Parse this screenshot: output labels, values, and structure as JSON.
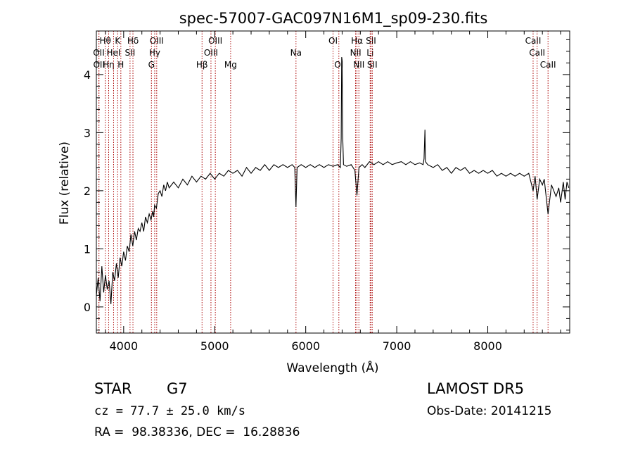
{
  "chart_data": {
    "type": "line",
    "title": "spec-57007-GAC097N16M1_sp09-230.fits",
    "xlabel": "Wavelength (Å)",
    "ylabel": "Flux (relative)",
    "xlim": [
      3700,
      8900
    ],
    "ylim": [
      -0.45,
      4.75
    ],
    "xticks": [
      4000,
      5000,
      6000,
      7000,
      8000
    ],
    "yticks": [
      0,
      1,
      2,
      3,
      4
    ],
    "grid": false,
    "series": [
      {
        "color": "#000000",
        "points": [
          [
            3700,
            0.2
          ],
          [
            3720,
            0.5
          ],
          [
            3740,
            0.1
          ],
          [
            3760,
            0.7
          ],
          [
            3780,
            0.25
          ],
          [
            3800,
            0.55
          ],
          [
            3820,
            0.3
          ],
          [
            3840,
            0.45
          ],
          [
            3860,
            0.05
          ],
          [
            3880,
            0.6
          ],
          [
            3900,
            0.45
          ],
          [
            3920,
            0.75
          ],
          [
            3940,
            0.5
          ],
          [
            3960,
            0.85
          ],
          [
            3980,
            0.7
          ],
          [
            4000,
            0.95
          ],
          [
            4020,
            0.8
          ],
          [
            4040,
            1.05
          ],
          [
            4060,
            0.95
          ],
          [
            4080,
            1.25
          ],
          [
            4100,
            1.05
          ],
          [
            4120,
            1.3
          ],
          [
            4140,
            1.15
          ],
          [
            4160,
            1.35
          ],
          [
            4180,
            1.3
          ],
          [
            4200,
            1.45
          ],
          [
            4220,
            1.3
          ],
          [
            4240,
            1.55
          ],
          [
            4260,
            1.45
          ],
          [
            4280,
            1.6
          ],
          [
            4300,
            1.5
          ],
          [
            4320,
            1.65
          ],
          [
            4330,
            1.55
          ],
          [
            4340,
            1.75
          ],
          [
            4360,
            1.7
          ],
          [
            4380,
            1.95
          ],
          [
            4400,
            2.0
          ],
          [
            4420,
            1.9
          ],
          [
            4440,
            2.1
          ],
          [
            4460,
            2.0
          ],
          [
            4480,
            2.15
          ],
          [
            4500,
            2.05
          ],
          [
            4550,
            2.15
          ],
          [
            4600,
            2.05
          ],
          [
            4650,
            2.2
          ],
          [
            4700,
            2.1
          ],
          [
            4750,
            2.25
          ],
          [
            4800,
            2.15
          ],
          [
            4850,
            2.25
          ],
          [
            4900,
            2.2
          ],
          [
            4950,
            2.3
          ],
          [
            5000,
            2.2
          ],
          [
            5050,
            2.3
          ],
          [
            5100,
            2.25
          ],
          [
            5150,
            2.35
          ],
          [
            5200,
            2.3
          ],
          [
            5250,
            2.35
          ],
          [
            5300,
            2.25
          ],
          [
            5350,
            2.4
          ],
          [
            5400,
            2.3
          ],
          [
            5450,
            2.4
          ],
          [
            5500,
            2.35
          ],
          [
            5550,
            2.45
          ],
          [
            5600,
            2.35
          ],
          [
            5650,
            2.45
          ],
          [
            5700,
            2.4
          ],
          [
            5750,
            2.45
          ],
          [
            5800,
            2.4
          ],
          [
            5850,
            2.45
          ],
          [
            5880,
            2.4
          ],
          [
            5893,
            1.72
          ],
          [
            5905,
            2.4
          ],
          [
            5950,
            2.45
          ],
          [
            6000,
            2.4
          ],
          [
            6050,
            2.45
          ],
          [
            6100,
            2.4
          ],
          [
            6150,
            2.45
          ],
          [
            6200,
            2.4
          ],
          [
            6250,
            2.45
          ],
          [
            6300,
            2.42
          ],
          [
            6350,
            2.45
          ],
          [
            6380,
            2.4
          ],
          [
            6390,
            2.9
          ],
          [
            6395,
            4.3
          ],
          [
            6400,
            4.25
          ],
          [
            6405,
            3.0
          ],
          [
            6415,
            2.45
          ],
          [
            6450,
            2.42
          ],
          [
            6500,
            2.45
          ],
          [
            6540,
            2.35
          ],
          [
            6563,
            1.92
          ],
          [
            6585,
            2.4
          ],
          [
            6620,
            2.45
          ],
          [
            6650,
            2.4
          ],
          [
            6700,
            2.5
          ],
          [
            6750,
            2.45
          ],
          [
            6800,
            2.5
          ],
          [
            6850,
            2.45
          ],
          [
            6900,
            2.5
          ],
          [
            6950,
            2.45
          ],
          [
            7000,
            2.48
          ],
          [
            7050,
            2.5
          ],
          [
            7100,
            2.45
          ],
          [
            7150,
            2.5
          ],
          [
            7200,
            2.45
          ],
          [
            7250,
            2.48
          ],
          [
            7290,
            2.45
          ],
          [
            7300,
            2.55
          ],
          [
            7310,
            3.05
          ],
          [
            7315,
            2.5
          ],
          [
            7340,
            2.45
          ],
          [
            7400,
            2.4
          ],
          [
            7450,
            2.45
          ],
          [
            7500,
            2.35
          ],
          [
            7550,
            2.4
          ],
          [
            7600,
            2.3
          ],
          [
            7650,
            2.4
          ],
          [
            7700,
            2.35
          ],
          [
            7750,
            2.4
          ],
          [
            7800,
            2.3
          ],
          [
            7850,
            2.35
          ],
          [
            7900,
            2.3
          ],
          [
            7950,
            2.35
          ],
          [
            8000,
            2.3
          ],
          [
            8050,
            2.35
          ],
          [
            8100,
            2.25
          ],
          [
            8150,
            2.3
          ],
          [
            8200,
            2.25
          ],
          [
            8250,
            2.3
          ],
          [
            8300,
            2.25
          ],
          [
            8350,
            2.3
          ],
          [
            8400,
            2.25
          ],
          [
            8450,
            2.3
          ],
          [
            8498,
            2.0
          ],
          [
            8520,
            2.25
          ],
          [
            8542,
            1.85
          ],
          [
            8570,
            2.2
          ],
          [
            8600,
            2.1
          ],
          [
            8620,
            2.2
          ],
          [
            8662,
            1.6
          ],
          [
            8700,
            2.1
          ],
          [
            8750,
            1.9
          ],
          [
            8780,
            2.05
          ],
          [
            8800,
            1.8
          ],
          [
            8830,
            2.15
          ],
          [
            8850,
            1.85
          ],
          [
            8870,
            2.15
          ],
          [
            8890,
            2.05
          ]
        ]
      }
    ],
    "lines_color": "#aa0000",
    "lines": [
      {
        "label": "Hθ",
        "x": 3798,
        "row": 0
      },
      {
        "label": "OII",
        "x": 3727,
        "row": 1
      },
      {
        "label": "OII",
        "x": 3729,
        "row": 2
      },
      {
        "label": "Hη",
        "x": 3835,
        "row": 2
      },
      {
        "label": "K",
        "x": 3934,
        "row": 0
      },
      {
        "label": "HeI",
        "x": 3889,
        "row": 1
      },
      {
        "label": "H",
        "x": 3969,
        "row": 2
      },
      {
        "label": "Hδ",
        "x": 4102,
        "row": 0
      },
      {
        "label": "SII",
        "x": 4070,
        "row": 1
      },
      {
        "label": "OIII",
        "x": 4363,
        "row": 0
      },
      {
        "label": "Hγ",
        "x": 4341,
        "row": 1
      },
      {
        "label": "G",
        "x": 4305,
        "row": 2
      },
      {
        "label": "Hβ",
        "x": 4861,
        "row": 2
      },
      {
        "label": "OIII",
        "x": 5007,
        "row": 0
      },
      {
        "label": "OIII",
        "x": 4959,
        "row": 1
      },
      {
        "label": "Mg",
        "x": 5175,
        "row": 2
      },
      {
        "label": "Na",
        "x": 5893,
        "row": 1
      },
      {
        "label": "OI",
        "x": 6300,
        "row": 0
      },
      {
        "label": "OI",
        "x": 6364,
        "row": 2
      },
      {
        "label": "Hα",
        "x": 6563,
        "row": 0
      },
      {
        "label": "NII",
        "x": 6548,
        "row": 1
      },
      {
        "label": "NII",
        "x": 6584,
        "row": 2
      },
      {
        "label": "SII",
        "x": 6717,
        "row": 0
      },
      {
        "label": "Li",
        "x": 6708,
        "row": 1
      },
      {
        "label": "SII",
        "x": 6731,
        "row": 2
      },
      {
        "label": "CaII",
        "x": 8498,
        "row": 0
      },
      {
        "label": "CaII",
        "x": 8542,
        "row": 1
      },
      {
        "label": "CaII",
        "x": 8662,
        "row": 2
      }
    ]
  },
  "info": {
    "class": "STAR",
    "subclass": "G7",
    "survey": "LAMOST DR5",
    "cz": "cz = 77.7 ± 25.0 km/s",
    "obs_date": "Obs-Date: 20141215",
    "radec": "RA =  98.38336, DEC =  16.28836"
  }
}
